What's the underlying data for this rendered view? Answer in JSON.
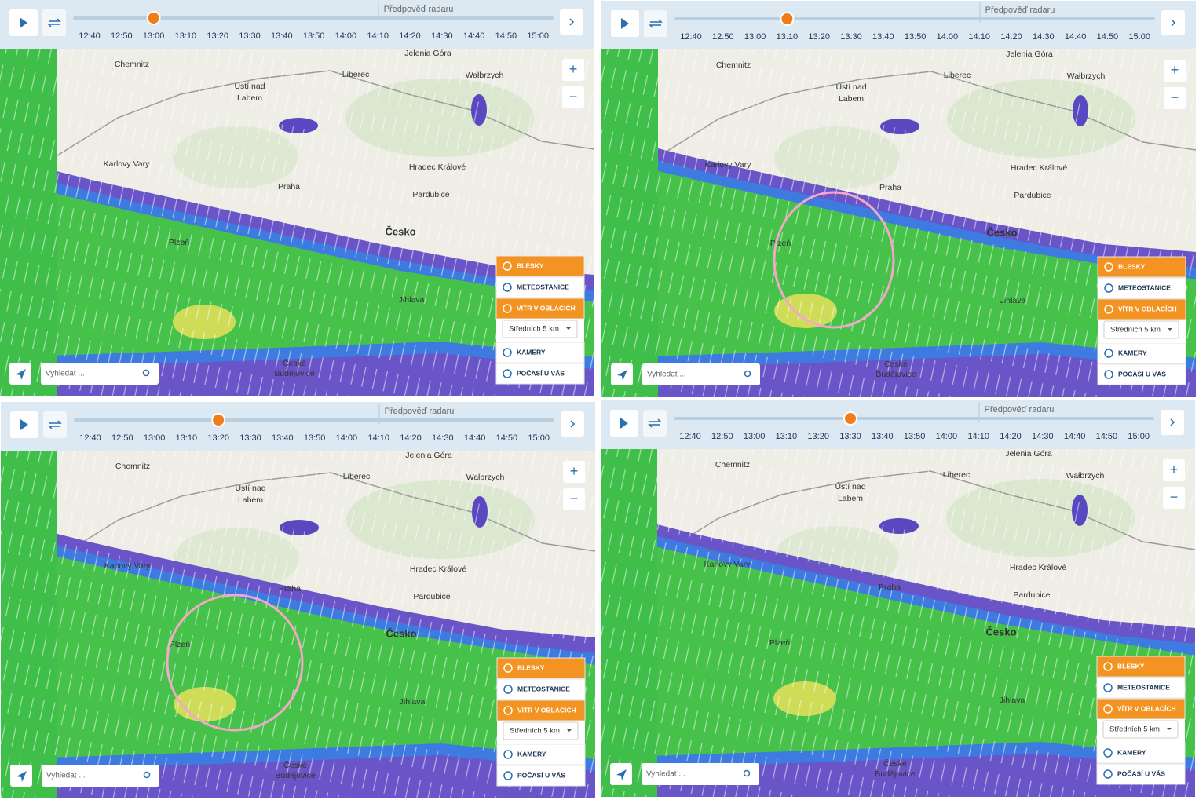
{
  "timeline": {
    "labels": [
      "12:40",
      "12:50",
      "13:00",
      "13:10",
      "13:20",
      "13:30",
      "13:40",
      "13:50",
      "14:00",
      "14:10",
      "14:20",
      "14:30",
      "14:40",
      "14:50",
      "15:00"
    ],
    "forecast_label": "Předpověď radaru"
  },
  "panels": [
    {
      "selected_index": 2
    },
    {
      "selected_index": 3
    },
    {
      "selected_index": 4
    },
    {
      "selected_index": 5
    }
  ],
  "cities": [
    "Chemnitz",
    "Ústí nad",
    "Labem",
    "Liberec",
    "Jelenia Góra",
    "Wałbrzych",
    "Karlovy Vary",
    "Praha",
    "Hradec Králové",
    "Pardubice",
    "Česko",
    "Plzeň",
    "Jihlava",
    "České",
    "Budějovice"
  ],
  "layers": {
    "lightning": "BLESKY",
    "stations": "METEOSTANICE",
    "wind": "VÍTR V OBLACÍCH",
    "altitude": "Středních 5 km",
    "cameras": "KAMERY",
    "local": "POČASÍ U VÁS"
  },
  "search": {
    "placeholder": "Vyhledat ..."
  },
  "zoom": {
    "in": "+",
    "out": "−"
  }
}
